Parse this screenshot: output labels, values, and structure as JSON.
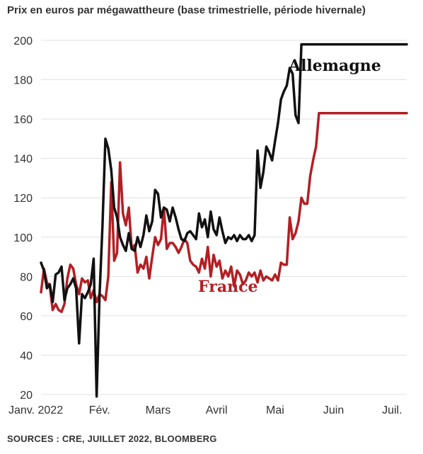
{
  "subtitle": "Prix en euros par mégawattheure (base trimestrielle, période hivernale)",
  "source": "SOURCES : CRE, JUILLET 2022, BLOOMBERG",
  "colors": {
    "allemagne": "#111111",
    "france": "#b21f24",
    "grid": "#e0e0e0"
  },
  "chart_data": {
    "type": "line",
    "title": "",
    "subtitle": "Prix en euros par mégawattheure (base trimestrielle, période hivernale)",
    "xlabel": "",
    "ylabel": "",
    "ylim": [
      20,
      200
    ],
    "yticks": [
      20,
      40,
      60,
      80,
      100,
      120,
      140,
      160,
      180,
      200
    ],
    "xticks": [
      {
        "label": "Janv. 2022",
        "x": 0
      },
      {
        "label": "Fév.",
        "x": 1
      },
      {
        "label": "Mars",
        "x": 2
      },
      {
        "label": "Avril",
        "x": 3
      },
      {
        "label": "Mai",
        "x": 4
      },
      {
        "label": "Juin",
        "x": 5
      },
      {
        "label": "Juil.",
        "x": 6
      }
    ],
    "grid": "horizontal",
    "legend": "direct-labels",
    "series": [
      {
        "name": "Allemagne",
        "x": [
          0.0,
          0.05,
          0.1,
          0.15,
          0.2,
          0.25,
          0.3,
          0.35,
          0.4,
          0.45,
          0.5,
          0.55,
          0.6,
          0.65,
          0.7,
          0.75,
          0.8,
          0.85,
          0.9,
          0.95,
          1.0,
          1.05,
          1.1,
          1.15,
          1.2,
          1.25,
          1.3,
          1.35,
          1.4,
          1.45,
          1.5,
          1.55,
          1.6,
          1.65,
          1.7,
          1.75,
          1.8,
          1.85,
          1.9,
          1.95,
          2.0,
          2.05,
          2.1,
          2.15,
          2.2,
          2.25,
          2.3,
          2.35,
          2.4,
          2.45,
          2.5,
          2.55,
          2.6,
          2.65,
          2.7,
          2.75,
          2.8,
          2.85,
          2.9,
          2.95,
          3.0,
          3.05,
          3.1,
          3.15,
          3.2,
          3.25,
          3.3,
          3.35,
          3.4,
          3.45,
          3.5,
          3.55,
          3.6,
          3.65,
          3.7,
          3.75,
          3.8,
          3.85,
          3.9,
          3.95,
          4.0,
          4.05,
          4.1,
          4.15,
          4.2,
          4.25,
          4.3,
          4.35,
          4.4,
          4.45,
          4.5,
          4.55,
          4.6,
          4.65,
          4.7,
          4.75,
          4.8,
          4.85,
          4.9,
          4.95,
          5.0,
          5.05,
          5.1,
          5.15,
          5.2,
          5.25,
          5.3,
          5.35,
          5.4,
          5.45,
          5.5,
          5.55,
          5.6,
          5.65,
          5.7,
          5.75,
          5.8,
          5.85,
          5.9,
          5.95,
          6.0,
          6.05,
          6.1,
          6.15,
          6.2,
          6.25
        ],
        "values": [
          87,
          83,
          74,
          76,
          67,
          81,
          82,
          85,
          68,
          74,
          76,
          79,
          74,
          46,
          71,
          69,
          72,
          76,
          89,
          19,
          70,
          106,
          150,
          145,
          134,
          115,
          110,
          100,
          96,
          93,
          102,
          94,
          93,
          100,
          95,
          101,
          111,
          103,
          108,
          124,
          122,
          110,
          115,
          114,
          108,
          115,
          110,
          104,
          99,
          98,
          102,
          103,
          101,
          99,
          112,
          105,
          109,
          100,
          113,
          104,
          101,
          110,
          103,
          97,
          100,
          99,
          101,
          98,
          101,
          99,
          99,
          101,
          98,
          101,
          144,
          125,
          133,
          146,
          143,
          139,
          149,
          158,
          170,
          174,
          177,
          186,
          183,
          162,
          158,
          198,
          198,
          198,
          198,
          198,
          198,
          198,
          198,
          198,
          198,
          198,
          198,
          198,
          198,
          198,
          198,
          198,
          198,
          198,
          198,
          198,
          198,
          198,
          198,
          198,
          198,
          198,
          198,
          198,
          198,
          198,
          198,
          198,
          198,
          198,
          198,
          198
        ]
      },
      {
        "name": "France",
        "x": [
          0.0,
          0.05,
          0.1,
          0.15,
          0.2,
          0.25,
          0.3,
          0.35,
          0.4,
          0.45,
          0.5,
          0.55,
          0.6,
          0.65,
          0.7,
          0.75,
          0.8,
          0.85,
          0.9,
          0.95,
          1.0,
          1.05,
          1.1,
          1.15,
          1.2,
          1.25,
          1.3,
          1.35,
          1.4,
          1.45,
          1.5,
          1.55,
          1.6,
          1.65,
          1.7,
          1.75,
          1.8,
          1.85,
          1.9,
          1.95,
          2.0,
          2.05,
          2.1,
          2.15,
          2.2,
          2.25,
          2.3,
          2.35,
          2.4,
          2.45,
          2.5,
          2.55,
          2.6,
          2.65,
          2.7,
          2.75,
          2.8,
          2.85,
          2.9,
          2.95,
          3.0,
          3.05,
          3.1,
          3.15,
          3.2,
          3.25,
          3.3,
          3.35,
          3.4,
          3.45,
          3.5,
          3.55,
          3.6,
          3.65,
          3.7,
          3.75,
          3.8,
          3.85,
          3.9,
          3.95,
          4.0,
          4.05,
          4.1,
          4.15,
          4.2,
          4.25,
          4.3,
          4.35,
          4.4,
          4.45,
          4.5,
          4.55,
          4.6,
          4.65,
          4.7,
          4.75,
          4.8,
          4.85,
          4.9,
          4.95,
          5.0,
          5.05,
          5.1,
          5.15,
          5.2,
          5.25,
          5.3,
          5.35,
          5.4,
          5.45,
          5.5,
          5.55,
          5.6,
          5.65,
          5.7,
          5.75,
          5.8,
          5.85,
          5.9,
          5.95,
          6.0,
          6.05,
          6.1,
          6.15,
          6.2,
          6.25
        ],
        "values": [
          72,
          84,
          77,
          75,
          63,
          66,
          63,
          62,
          66,
          79,
          86,
          84,
          76,
          71,
          79,
          77,
          78,
          69,
          73,
          67,
          71,
          70,
          68,
          80,
          128,
          88,
          92,
          138,
          112,
          106,
          115,
          94,
          96,
          82,
          86,
          84,
          90,
          79,
          90,
          100,
          96,
          99,
          115,
          94,
          97,
          97,
          95,
          92,
          95,
          99,
          97,
          88,
          86,
          85,
          82,
          89,
          84,
          95,
          80,
          91,
          85,
          88,
          79,
          83,
          80,
          85,
          75,
          83,
          81,
          76,
          78,
          82,
          80,
          82,
          77,
          83,
          78,
          80,
          79,
          78,
          81,
          78,
          87,
          86,
          86,
          110,
          99,
          102,
          108,
          120,
          117,
          117,
          131,
          139,
          146,
          163,
          163,
          163,
          163,
          163,
          163,
          163,
          163,
          163,
          163,
          163,
          163,
          163,
          163,
          163,
          163,
          163,
          163,
          163,
          163,
          163,
          163,
          163,
          163,
          163,
          163,
          163,
          163,
          163,
          163,
          163
        ]
      }
    ]
  }
}
